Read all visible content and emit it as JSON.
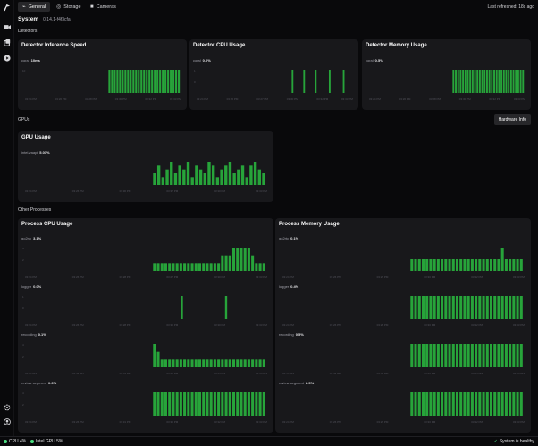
{
  "sidebar": {
    "icons": [
      "logo-icon",
      "camera-icon",
      "video-icon",
      "play-circle-icon",
      "settings-icon",
      "user-circle-icon"
    ]
  },
  "tabs": [
    {
      "label": "General",
      "icon": "activity-icon",
      "active": true
    },
    {
      "label": "Storage",
      "icon": "database-icon",
      "active": false
    },
    {
      "label": "Cameras",
      "icon": "camera-icon",
      "active": false
    }
  ],
  "last_refreshed": "Last refreshed: 18s ago",
  "system": {
    "title": "System",
    "version": "0.14.1-f4f3cfa"
  },
  "sections": {
    "detectors": "Detectors",
    "gpus": "GPUs",
    "other": "Other Processes"
  },
  "hardware_button": "Hardware Info",
  "cards": {
    "detector_inference": {
      "title": "Detector Inference Speed"
    },
    "detector_cpu": {
      "title": "Detector CPU Usage"
    },
    "detector_memory": {
      "title": "Detector Memory Usage"
    },
    "gpu_usage": {
      "title": "GPU Usage"
    },
    "process_cpu": {
      "title": "Process CPU Usage"
    },
    "process_memory": {
      "title": "Process Memory Usage"
    }
  },
  "chart_data": [
    {
      "id": "det_inf",
      "type": "bar",
      "series": [
        {
          "name": "coral",
          "current": "10ms",
          "values": [
            10,
            10,
            10,
            10,
            10,
            10,
            10,
            10,
            10,
            10,
            10,
            10,
            10,
            10,
            10,
            10,
            10,
            10,
            10,
            10,
            10,
            10,
            10,
            10,
            10,
            10,
            10
          ]
        }
      ],
      "yticks": [
        "10",
        ""
      ],
      "xticks": [
        "03:24 PM",
        "03:26 PM",
        "03:28 PM",
        "03:30 PM",
        "03:32 PM",
        "03:33 PM"
      ],
      "start": 0.52
    },
    {
      "id": "det_cpu",
      "type": "bar",
      "series": [
        {
          "name": "coral",
          "current": "0.0%",
          "values": [
            0,
            0,
            0,
            0,
            0,
            1,
            0,
            0,
            0,
            0,
            1,
            0,
            0,
            0,
            0,
            1,
            0,
            0,
            0,
            0,
            0,
            1,
            0,
            0,
            0,
            0,
            0,
            1,
            0,
            0,
            0
          ]
        }
      ],
      "yticks": [
        "1",
        "0"
      ],
      "xticks": [
        "03:24 PM",
        "03:26 PM",
        "03:27 PM",
        "03:30 PM",
        "03:32 PM",
        "03:33 PM"
      ],
      "start": 0.52
    },
    {
      "id": "det_mem",
      "type": "bar",
      "series": [
        {
          "name": "coral",
          "current": "0.5%",
          "values": [
            1,
            1,
            1,
            1,
            1,
            1,
            1,
            1,
            1,
            1,
            1,
            1,
            1,
            1,
            1,
            1,
            1,
            1,
            1,
            1,
            1,
            1,
            1,
            1,
            1,
            1,
            1,
            1,
            1,
            1
          ]
        }
      ],
      "yticks": [
        "",
        ""
      ],
      "xticks": [
        "03:24 PM",
        "03:26 PM",
        "03:28 PM",
        "03:30 PM",
        "03:32 PM",
        "03:33 PM"
      ],
      "start": 0.52
    },
    {
      "id": "gpu",
      "type": "bar",
      "series": [
        {
          "name": "intel-vaapi",
          "current": "5.03%",
          "values": [
            3,
            5,
            2,
            4,
            6,
            3,
            5,
            4,
            6,
            2,
            5,
            4,
            3,
            6,
            5,
            2,
            4,
            5,
            6,
            3,
            4,
            5,
            2,
            5,
            6,
            4,
            3
          ]
        }
      ],
      "yticks": [
        "",
        ""
      ],
      "xticks": [
        "03:24 PM",
        "03:26 PM",
        "03:30 PM",
        "03:37 PM",
        "03:30 PM",
        "03:33 PM"
      ],
      "start": 0.52
    },
    {
      "id": "pcpu_go2rtc",
      "type": "bar",
      "series": [
        {
          "name": "go2rtc",
          "current": "3.1%",
          "values": [
            1,
            1,
            1,
            1,
            1,
            1,
            1,
            1,
            1,
            1,
            1,
            1,
            1,
            1,
            1,
            1,
            1,
            1,
            2,
            2,
            2,
            3,
            3,
            3,
            3,
            3,
            2,
            1,
            1,
            1
          ]
        }
      ],
      "yticks": [
        "4",
        "2"
      ],
      "xticks": [
        "03:24 PM",
        "03:26 PM",
        "03:28 PM",
        "03:27 PM",
        "03:30 PM",
        "03:33 PM"
      ],
      "start": 0.52
    },
    {
      "id": "pcpu_logger",
      "type": "bar",
      "series": [
        {
          "name": "logger",
          "current": "0.0%",
          "values": [
            0,
            0,
            0,
            0,
            0,
            0,
            0,
            0,
            0,
            0,
            0,
            0,
            0,
            0,
            0,
            0,
            0,
            0,
            0,
            0,
            0,
            0,
            0,
            0,
            0,
            0,
            0,
            0,
            0,
            0,
            0,
            0,
            0,
            0,
            0,
            0,
            0,
            0,
            0,
            0,
            0,
            0,
            0,
            0,
            0,
            0,
            0,
            0,
            0,
            0,
            0,
            1,
            0,
            0,
            0,
            0,
            0,
            0,
            0,
            0,
            0,
            0,
            0,
            0,
            0,
            0,
            1,
            0,
            0,
            0,
            0,
            0,
            0,
            0,
            0,
            0,
            0,
            0,
            0,
            0
          ]
        }
      ],
      "yticks": [
        "1",
        "0"
      ],
      "xticks": [
        "03:24 PM",
        "03:26 PM",
        "03:28 PM",
        "03:30 PM",
        "03:30 PM",
        "03:33 PM"
      ],
      "start": 0.0
    },
    {
      "id": "pcpu_recording",
      "type": "bar",
      "series": [
        {
          "name": "recording",
          "current": "0.1%",
          "values": [
            3,
            2,
            1,
            1,
            1,
            1,
            1,
            1,
            1,
            1,
            1,
            1,
            1,
            1,
            1,
            1,
            1,
            1,
            1,
            1,
            1,
            1,
            1,
            1,
            1,
            1,
            1,
            1,
            1,
            1
          ]
        }
      ],
      "yticks": [
        "4",
        "2"
      ],
      "xticks": [
        "03:24 PM",
        "03:26 PM",
        "03:27 PM",
        "03:30 PM",
        "03:32 PM",
        "03:33 PM"
      ],
      "start": 0.52
    },
    {
      "id": "pcpu_review",
      "type": "bar",
      "series": [
        {
          "name": "review segment",
          "current": "0.3%",
          "values": [
            1,
            1,
            1,
            1,
            1,
            1,
            1,
            1,
            1,
            1,
            1,
            1,
            1,
            1,
            1,
            1,
            1,
            1,
            1,
            1,
            1,
            1,
            1,
            1,
            1,
            1,
            1,
            1,
            1,
            1
          ]
        }
      ],
      "yticks": [
        "4",
        "2"
      ],
      "xticks": [
        "03:24 PM",
        "03:26 PM",
        "03:31 PM",
        "03:30 PM",
        "03:32 PM",
        "03:33 PM"
      ],
      "start": 0.52
    },
    {
      "id": "pmem_go2rtc",
      "type": "bar",
      "series": [
        {
          "name": "go2rtc",
          "current": "0.1%",
          "values": [
            1,
            1,
            1,
            1,
            1,
            1,
            1,
            1,
            1,
            1,
            1,
            1,
            1,
            1,
            1,
            1,
            1,
            1,
            1,
            1,
            1,
            1,
            1,
            1,
            2,
            1,
            1,
            1,
            1,
            1
          ]
        }
      ],
      "yticks": [
        "",
        ""
      ],
      "xticks": [
        "03:24 PM",
        "03:26 PM",
        "03:27 PM",
        "03:30 PM",
        "03:32 PM",
        "03:33 PM"
      ],
      "start": 0.52
    },
    {
      "id": "pmem_logger",
      "type": "bar",
      "series": [
        {
          "name": "logger",
          "current": "0.4%",
          "values": [
            1,
            1,
            1,
            1,
            1,
            1,
            1,
            1,
            1,
            1,
            1,
            1,
            1,
            1,
            1,
            1,
            1,
            1,
            1,
            1,
            1,
            1,
            1,
            1,
            1,
            1,
            1,
            1,
            1,
            1
          ]
        }
      ],
      "yticks": [
        "",
        ""
      ],
      "xticks": [
        "03:24 PM",
        "03:26 PM",
        "03:28 PM",
        "03:30 PM",
        "03:32 PM",
        "03:33 PM"
      ],
      "start": 0.52
    },
    {
      "id": "pmem_recording",
      "type": "bar",
      "series": [
        {
          "name": "recording",
          "current": "0.5%",
          "values": [
            1,
            1,
            1,
            1,
            1,
            1,
            1,
            1,
            1,
            1,
            1,
            1,
            1,
            1,
            1,
            1,
            1,
            1,
            1,
            1,
            1,
            1,
            1,
            1,
            1,
            1,
            1,
            1,
            1,
            1
          ]
        }
      ],
      "yticks": [
        "",
        ""
      ],
      "xticks": [
        "03:24 PM",
        "03:26 PM",
        "03:27 PM",
        "03:30 PM",
        "03:32 PM",
        "03:33 PM"
      ],
      "start": 0.52
    },
    {
      "id": "pmem_review",
      "type": "bar",
      "series": [
        {
          "name": "review segment",
          "current": "2.5%",
          "values": [
            1,
            1,
            1,
            1,
            1,
            1,
            1,
            1,
            1,
            1,
            1,
            1,
            1,
            1,
            1,
            1,
            1,
            1,
            1,
            1,
            1,
            1,
            1,
            1,
            1,
            1,
            1,
            1,
            1,
            1
          ]
        }
      ],
      "yticks": [
        "",
        ""
      ],
      "xticks": [
        "03:24 PM",
        "03:26 PM",
        "03:27 PM",
        "03:30 PM",
        "03:32 PM",
        "03:33 PM"
      ],
      "start": 0.52
    }
  ],
  "status": {
    "cpu": "CPU 4%",
    "gpu": "Intel GPU 5%",
    "health": "System is healthy"
  },
  "colors": {
    "bar": "#27a43a",
    "accent_ok": "#4ade80",
    "card": "#18181b"
  }
}
